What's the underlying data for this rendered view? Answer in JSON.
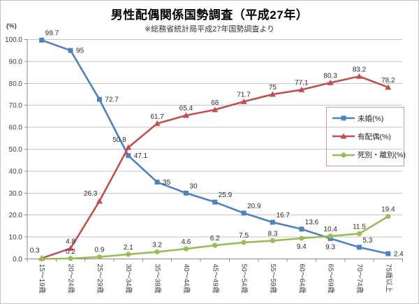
{
  "chart_data": {
    "type": "line",
    "title": "男性配偶関係国勢調査（平成27年）",
    "subtitle": "※総務省統計局平成27年国勢調査より",
    "unit_label": "(%)",
    "categories": [
      "15～19歳",
      "20～24歳",
      "25～29歳",
      "30～34歳",
      "35～39歳",
      "40～44歳",
      "45～49歳",
      "50～54歳",
      "55～59歳",
      "60～64歳",
      "65～69歳",
      "70～74歳",
      "75歳以上"
    ],
    "series": [
      {
        "name": "未婚(%)",
        "color": "#4F81BD",
        "marker": "square",
        "values": [
          99.7,
          95,
          72.7,
          47.1,
          35,
          30,
          25.9,
          20.9,
          16.7,
          13.6,
          9.3,
          5.3,
          2.4
        ],
        "labels": [
          "99.7",
          "95",
          "72.7",
          "47.1",
          "35",
          "30",
          "25.9",
          "20.9",
          "16.7",
          "13.6",
          "9.3",
          "5.3",
          "2.4"
        ],
        "label_pos": [
          "above-right",
          "right",
          "right",
          "right",
          "right",
          "above-right",
          "above-right",
          "above-right",
          "above-right",
          "above-right",
          "below",
          "above-right",
          "right"
        ]
      },
      {
        "name": "有配偶(%)",
        "color": "#C0504D",
        "marker": "triangle",
        "values": [
          0.3,
          4.8,
          26.3,
          50.8,
          61.7,
          65.4,
          68,
          71.7,
          75,
          77.1,
          80.3,
          83.2,
          78.2
        ],
        "labels": [
          "0.3",
          "4.8",
          "26.3",
          "50.8",
          "61.7",
          "65.4",
          "68",
          "71.7",
          "75",
          "77.1",
          "80.3",
          "83.2",
          "78.2"
        ],
        "label_pos": [
          "above-left",
          "above",
          "above-left",
          "above-left",
          "above",
          "above",
          "above",
          "above",
          "above",
          "above",
          "above",
          "above",
          "above"
        ]
      },
      {
        "name": "死別・離別(%)",
        "color": "#9BBB59",
        "marker": "circle",
        "values": [
          0,
          0.2,
          0.9,
          2.1,
          3.2,
          4.6,
          6.2,
          7.5,
          8.3,
          9.4,
          10.4,
          11.5,
          19.4
        ],
        "labels": [
          "",
          "0.2",
          "0.9",
          "2.1",
          "3.2",
          "4.6",
          "6.2",
          "7.5",
          "8.3",
          "9.4",
          "10.4",
          "11.5",
          "19.4"
        ],
        "label_pos": [
          "",
          "above",
          "above",
          "above",
          "above",
          "above",
          "above",
          "above",
          "above",
          "below",
          "above",
          "above",
          "above"
        ]
      }
    ],
    "y_axis": {
      "min": 0,
      "max": 100,
      "step": 10,
      "tick_labels": [
        "0.0",
        "10.0",
        "20.0",
        "30.0",
        "40.0",
        "50.0",
        "60.0",
        "70.0",
        "80.0",
        "90.0",
        "100.0"
      ]
    },
    "grid": true,
    "legend_position": "right-overlay",
    "colors": {
      "gridline": "#c6c6c6",
      "axis": "#898989",
      "tick_text": "#3f3f3f",
      "data_label_text": "#2b2b2b",
      "legend_border": "#D99694"
    }
  }
}
